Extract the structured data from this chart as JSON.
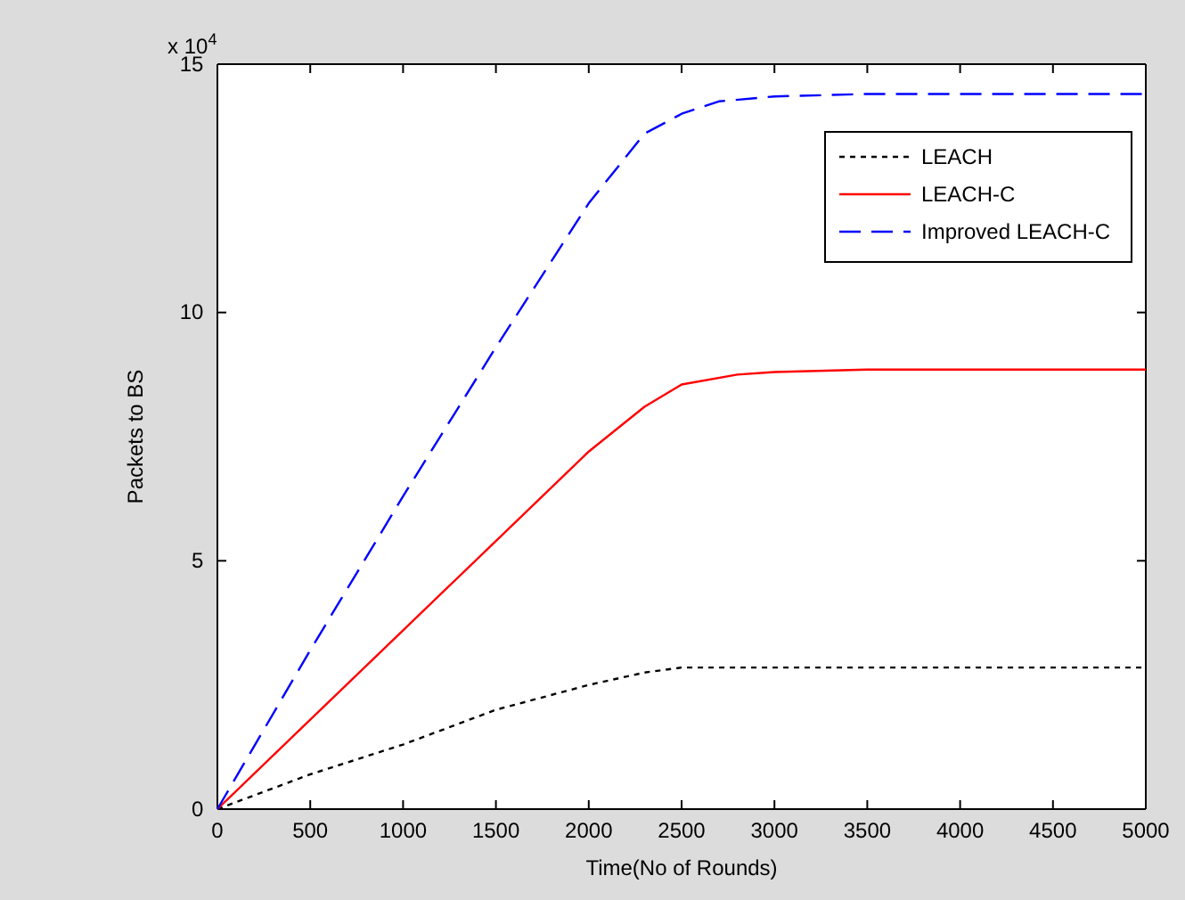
{
  "chart_data": {
    "type": "line",
    "xlabel": "Time(No of Rounds)",
    "ylabel": "Packets to BS",
    "annotations": [
      "x 10$^{4}$"
    ],
    "xlim": [
      0,
      5000
    ],
    "xticks": [
      0,
      500,
      1000,
      1500,
      2000,
      2500,
      3000,
      3500,
      4000,
      4500,
      5000
    ],
    "ylim": [
      0,
      15
    ],
    "yticks": [
      0,
      5,
      10,
      15
    ],
    "legend": "top right",
    "grid": false,
    "series": [
      {
        "name": "LEACH",
        "color": "#000000",
        "line_style": "dotted",
        "x": [
          0,
          500,
          1000,
          1500,
          2000,
          2300,
          2500,
          3000,
          5000
        ],
        "values": [
          0,
          0.7,
          1.3,
          2.0,
          2.5,
          2.75,
          2.85,
          2.85,
          2.85
        ]
      },
      {
        "name": "LEACH-C",
        "color": "#ff0000",
        "line_style": "solid",
        "x": [
          0,
          500,
          1000,
          1500,
          2000,
          2300,
          2500,
          2800,
          3000,
          3500,
          5000
        ],
        "values": [
          0,
          1.8,
          3.6,
          5.4,
          7.2,
          8.1,
          8.55,
          8.75,
          8.8,
          8.85,
          8.85
        ]
      },
      {
        "name": "Improved LEACH-C",
        "color": "#0000ff",
        "line_style": "dashed",
        "x": [
          0,
          500,
          1000,
          1500,
          2000,
          2300,
          2500,
          2700,
          3000,
          3500,
          5000
        ],
        "values": [
          0,
          3.2,
          6.3,
          9.3,
          12.2,
          13.6,
          14.0,
          14.25,
          14.35,
          14.4,
          14.4
        ]
      }
    ]
  }
}
